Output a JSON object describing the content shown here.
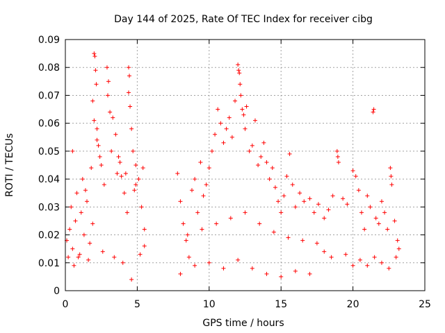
{
  "chart_data": {
    "type": "scatter",
    "title": "Day 144 of 2025, Rate Of TEC Index for receiver cibg",
    "xlabel": "GPS time / hours",
    "ylabel": "ROTI / TECUs",
    "xlim": [
      0,
      25
    ],
    "ylim": [
      0,
      0.09
    ],
    "xticks": [
      0,
      5,
      10,
      15,
      20,
      25
    ],
    "xtick_labels": [
      "0",
      "5",
      "10",
      "15",
      "20",
      "25"
    ],
    "yticks": [
      0,
      0.01,
      0.02,
      0.03,
      0.04,
      0.05,
      0.06,
      0.07,
      0.08,
      0.09
    ],
    "ytick_labels": [
      "0",
      "0.01",
      "0.02",
      "0.03",
      "0.04",
      "0.05",
      "0.06",
      "0.07",
      "0.08",
      "0.09"
    ],
    "grid": true,
    "marker": "+",
    "color": "#ff0000",
    "series": [
      {
        "name": "ROTI",
        "points": [
          [
            0.1,
            0.018
          ],
          [
            0.3,
            0.022
          ],
          [
            0.5,
            0.015
          ],
          [
            0.7,
            0.025
          ],
          [
            0.9,
            0.012
          ],
          [
            1.1,
            0.028
          ],
          [
            1.3,
            0.02
          ],
          [
            1.5,
            0.032
          ],
          [
            1.7,
            0.017
          ],
          [
            1.9,
            0.024
          ],
          [
            2.0,
            0.085
          ],
          [
            2.05,
            0.084
          ],
          [
            2.1,
            0.079
          ],
          [
            2.15,
            0.074
          ],
          [
            1.9,
            0.068
          ],
          [
            2.0,
            0.061
          ],
          [
            2.2,
            0.058
          ],
          [
            2.3,
            0.052
          ],
          [
            2.5,
            0.045
          ],
          [
            2.7,
            0.038
          ],
          [
            2.9,
            0.08
          ],
          [
            3.0,
            0.075
          ],
          [
            2.95,
            0.07
          ],
          [
            3.1,
            0.064
          ],
          [
            3.3,
            0.062
          ],
          [
            3.5,
            0.056
          ],
          [
            3.7,
            0.048
          ],
          [
            3.9,
            0.041
          ],
          [
            4.1,
            0.035
          ],
          [
            4.3,
            0.028
          ],
          [
            4.4,
            0.08
          ],
          [
            4.45,
            0.077
          ],
          [
            4.4,
            0.071
          ],
          [
            4.5,
            0.066
          ],
          [
            4.6,
            0.058
          ],
          [
            4.7,
            0.05
          ],
          [
            4.9,
            0.045
          ],
          [
            5.1,
            0.04
          ],
          [
            5.3,
            0.03
          ],
          [
            5.5,
            0.022
          ],
          [
            0.2,
            0.012
          ],
          [
            0.6,
            0.009
          ],
          [
            1.0,
            0.013
          ],
          [
            1.6,
            0.011
          ],
          [
            2.6,
            0.014
          ],
          [
            3.4,
            0.012
          ],
          [
            4.0,
            0.01
          ],
          [
            4.6,
            0.004
          ],
          [
            5.2,
            0.013
          ],
          [
            5.5,
            0.016
          ],
          [
            0.4,
            0.03
          ],
          [
            0.8,
            0.035
          ],
          [
            1.2,
            0.04
          ],
          [
            1.8,
            0.044
          ],
          [
            2.4,
            0.048
          ],
          [
            3.2,
            0.05
          ],
          [
            3.8,
            0.046
          ],
          [
            4.2,
            0.042
          ],
          [
            4.8,
            0.036
          ],
          [
            5.4,
            0.044
          ],
          [
            0.5,
            0.05
          ],
          [
            1.4,
            0.036
          ],
          [
            2.2,
            0.054
          ],
          [
            3.6,
            0.042
          ],
          [
            4.9,
            0.038
          ],
          [
            7.8,
            0.042
          ],
          [
            8.0,
            0.032
          ],
          [
            8.2,
            0.024
          ],
          [
            8.4,
            0.018
          ],
          [
            8.6,
            0.012
          ],
          [
            8.8,
            0.036
          ],
          [
            9.0,
            0.04
          ],
          [
            9.2,
            0.028
          ],
          [
            9.4,
            0.046
          ],
          [
            9.6,
            0.034
          ],
          [
            9.8,
            0.038
          ],
          [
            10.0,
            0.044
          ],
          [
            10.2,
            0.05
          ],
          [
            10.4,
            0.056
          ],
          [
            10.6,
            0.065
          ],
          [
            10.8,
            0.06
          ],
          [
            11.0,
            0.053
          ],
          [
            11.2,
            0.058
          ],
          [
            11.4,
            0.062
          ],
          [
            11.6,
            0.055
          ],
          [
            11.8,
            0.068
          ],
          [
            12.0,
            0.081
          ],
          [
            12.05,
            0.079
          ],
          [
            12.1,
            0.078
          ],
          [
            12.15,
            0.074
          ],
          [
            12.2,
            0.07
          ],
          [
            12.3,
            0.065
          ],
          [
            12.4,
            0.063
          ],
          [
            12.5,
            0.058
          ],
          [
            12.6,
            0.066
          ],
          [
            12.8,
            0.05
          ],
          [
            13.0,
            0.052
          ],
          [
            13.2,
            0.061
          ],
          [
            13.4,
            0.045
          ],
          [
            13.6,
            0.048
          ],
          [
            13.8,
            0.053
          ],
          [
            14.0,
            0.046
          ],
          [
            14.2,
            0.04
          ],
          [
            14.4,
            0.044
          ],
          [
            14.6,
            0.037
          ],
          [
            8.0,
            0.006
          ],
          [
            9.0,
            0.009
          ],
          [
            10.0,
            0.01
          ],
          [
            11.0,
            0.008
          ],
          [
            12.0,
            0.011
          ],
          [
            13.0,
            0.008
          ],
          [
            14.0,
            0.006
          ],
          [
            15.0,
            0.005
          ],
          [
            16.0,
            0.007
          ],
          [
            17.0,
            0.006
          ],
          [
            14.8,
            0.032
          ],
          [
            15.0,
            0.028
          ],
          [
            15.2,
            0.034
          ],
          [
            15.4,
            0.041
          ],
          [
            15.6,
            0.049
          ],
          [
            15.8,
            0.038
          ],
          [
            16.0,
            0.03
          ],
          [
            16.3,
            0.035
          ],
          [
            16.6,
            0.032
          ],
          [
            17.0,
            0.033
          ],
          [
            17.3,
            0.028
          ],
          [
            17.6,
            0.031
          ],
          [
            18.0,
            0.026
          ],
          [
            18.3,
            0.029
          ],
          [
            18.6,
            0.034
          ],
          [
            18.9,
            0.05
          ],
          [
            18.95,
            0.048
          ],
          [
            19.0,
            0.046
          ],
          [
            19.3,
            0.033
          ],
          [
            19.6,
            0.031
          ],
          [
            20.0,
            0.043
          ],
          [
            20.2,
            0.041
          ],
          [
            20.4,
            0.036
          ],
          [
            20.6,
            0.028
          ],
          [
            20.8,
            0.022
          ],
          [
            21.0,
            0.034
          ],
          [
            21.2,
            0.03
          ],
          [
            21.4,
            0.064
          ],
          [
            21.45,
            0.065
          ],
          [
            21.6,
            0.026
          ],
          [
            21.8,
            0.024
          ],
          [
            22.0,
            0.032
          ],
          [
            22.2,
            0.028
          ],
          [
            22.4,
            0.022
          ],
          [
            22.6,
            0.044
          ],
          [
            22.65,
            0.041
          ],
          [
            22.7,
            0.038
          ],
          [
            22.9,
            0.025
          ],
          [
            23.1,
            0.018
          ],
          [
            23.2,
            0.015
          ],
          [
            20.0,
            0.009
          ],
          [
            20.5,
            0.011
          ],
          [
            21.0,
            0.009
          ],
          [
            21.5,
            0.012
          ],
          [
            22.0,
            0.01
          ],
          [
            22.5,
            0.008
          ],
          [
            23.0,
            0.012
          ],
          [
            19.5,
            0.013
          ],
          [
            18.5,
            0.012
          ],
          [
            18.0,
            0.014
          ],
          [
            8.5,
            0.02
          ],
          [
            9.5,
            0.022
          ],
          [
            10.5,
            0.024
          ],
          [
            11.5,
            0.026
          ],
          [
            12.5,
            0.028
          ],
          [
            13.5,
            0.024
          ],
          [
            14.5,
            0.021
          ],
          [
            15.5,
            0.019
          ],
          [
            16.5,
            0.018
          ],
          [
            17.5,
            0.017
          ]
        ]
      }
    ]
  }
}
